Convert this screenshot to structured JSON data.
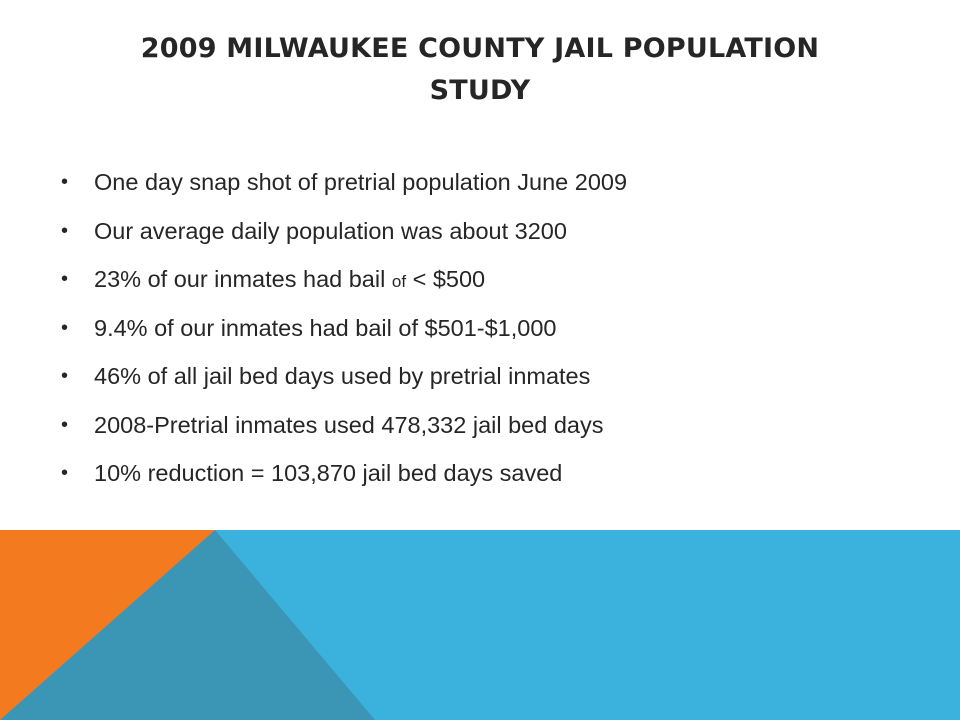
{
  "slide": {
    "title_line1": "2009 Milwaukee County Jail Population",
    "title_line2": "Study",
    "bullets": [
      {
        "text": "One day snap shot of pretrial population June 2009"
      },
      {
        "text": "Our average daily population was about 3200"
      },
      {
        "text_before": "23% of our inmates had bail ",
        "text_small": "of",
        "text_after": " < $500"
      },
      {
        "text": "9.4% of our inmates had bail of $501-$1,000"
      },
      {
        "text": "46% of all jail bed days used by pretrial inmates"
      },
      {
        "text": "2008-Pretrial inmates used 478,332 jail bed days"
      },
      {
        "text": "10% reduction = 103,870 jail bed days saved"
      }
    ],
    "bullet_glyph": "•"
  },
  "theme": {
    "text_color": "#262626",
    "accent_blue": "#3bb2de",
    "accent_orange": "#f47a20",
    "accent_teal": "#3a96b4",
    "background": "#ffffff"
  }
}
